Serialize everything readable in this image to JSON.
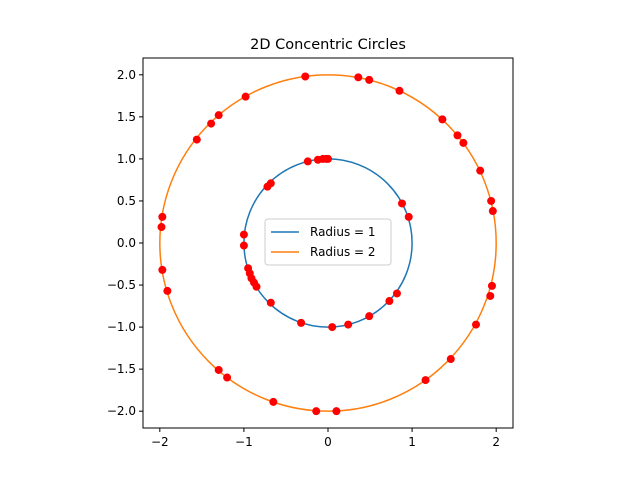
{
  "chart_data": {
    "type": "scatter",
    "title": "2D Concentric Circles",
    "xlabel": "",
    "ylabel": "",
    "xlim": [
      -2.2,
      2.2
    ],
    "ylim": [
      -2.2,
      2.2
    ],
    "xticks": [
      -2,
      -1,
      0,
      1,
      2
    ],
    "yticks": [
      -2.0,
      -1.5,
      -1.0,
      -0.5,
      0.0,
      0.5,
      1.0,
      1.5,
      2.0
    ],
    "ytick_labels": [
      "−2.0",
      "−1.5",
      "−1.0",
      "−0.5",
      "0.0",
      "0.5",
      "1.0",
      "1.5",
      "2.0"
    ],
    "xtick_labels": [
      "−2",
      "−1",
      "0",
      "1",
      "2"
    ],
    "grid": false,
    "legend_position": "center",
    "circles": [
      {
        "name": "Radius = 1",
        "radius": 1,
        "color": "#1f77b4"
      },
      {
        "name": "Radius = 2",
        "radius": 2,
        "color": "#ff7f0e"
      }
    ],
    "points_color": "#ff0000",
    "points": [
      {
        "x": -0.24,
        "y": 0.97
      },
      {
        "x": -0.12,
        "y": 0.99
      },
      {
        "x": -0.06,
        "y": 1.0
      },
      {
        "x": -0.02,
        "y": 1.0
      },
      {
        "x": 0.0,
        "y": 1.0
      },
      {
        "x": 0.88,
        "y": 0.47
      },
      {
        "x": 0.96,
        "y": 0.31
      },
      {
        "x": -0.72,
        "y": 0.67
      },
      {
        "x": -0.68,
        "y": 0.71
      },
      {
        "x": -1.0,
        "y": 0.1
      },
      {
        "x": -1.0,
        "y": -0.03
      },
      {
        "x": -0.95,
        "y": -0.3
      },
      {
        "x": -0.93,
        "y": -0.36
      },
      {
        "x": -0.91,
        "y": -0.42
      },
      {
        "x": -0.88,
        "y": -0.47
      },
      {
        "x": -0.85,
        "y": -0.52
      },
      {
        "x": -0.68,
        "y": -0.71
      },
      {
        "x": -0.32,
        "y": -0.95
      },
      {
        "x": 0.05,
        "y": -1.0
      },
      {
        "x": 0.24,
        "y": -0.97
      },
      {
        "x": 0.49,
        "y": -0.87
      },
      {
        "x": 0.73,
        "y": -0.69
      },
      {
        "x": 0.82,
        "y": -0.6
      },
      {
        "x": -0.27,
        "y": 1.98
      },
      {
        "x": 0.36,
        "y": 1.97
      },
      {
        "x": 0.49,
        "y": 1.94
      },
      {
        "x": 0.85,
        "y": 1.81
      },
      {
        "x": -0.98,
        "y": 1.74
      },
      {
        "x": -1.3,
        "y": 1.52
      },
      {
        "x": -1.39,
        "y": 1.42
      },
      {
        "x": -1.56,
        "y": 1.23
      },
      {
        "x": 1.36,
        "y": 1.47
      },
      {
        "x": 1.54,
        "y": 1.28
      },
      {
        "x": 1.61,
        "y": 1.19
      },
      {
        "x": 1.81,
        "y": 0.86
      },
      {
        "x": 1.94,
        "y": 0.5
      },
      {
        "x": 1.96,
        "y": 0.38
      },
      {
        "x": -1.97,
        "y": 0.31
      },
      {
        "x": -1.98,
        "y": 0.19
      },
      {
        "x": -1.97,
        "y": -0.32
      },
      {
        "x": -1.91,
        "y": -0.57
      },
      {
        "x": 1.95,
        "y": -0.51
      },
      {
        "x": 1.93,
        "y": -0.63
      },
      {
        "x": 1.76,
        "y": -0.97
      },
      {
        "x": 1.46,
        "y": -1.38
      },
      {
        "x": 1.16,
        "y": -1.63
      },
      {
        "x": -1.3,
        "y": -1.51
      },
      {
        "x": -1.2,
        "y": -1.6
      },
      {
        "x": -0.65,
        "y": -1.89
      },
      {
        "x": -0.14,
        "y": -2.0
      },
      {
        "x": 0.1,
        "y": -2.0
      }
    ]
  }
}
